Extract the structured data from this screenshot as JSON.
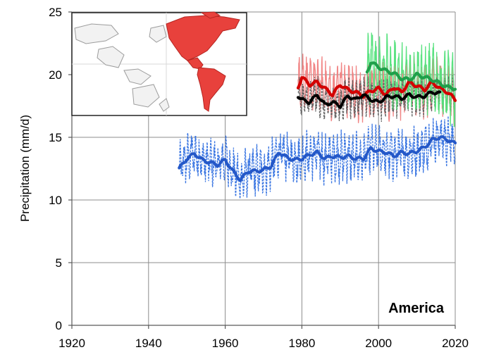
{
  "chart_data": {
    "type": "line",
    "title": "",
    "region_label": "America",
    "xlabel": "",
    "ylabel": "Precipitation (mm/d)",
    "xlim": [
      1920,
      2020
    ],
    "ylim": [
      0,
      25
    ],
    "x_ticks": [
      "1920",
      "1940",
      "1960",
      "1980",
      "2000",
      "2020"
    ],
    "y_ticks": [
      "0",
      "5",
      "10",
      "15",
      "20",
      "25"
    ],
    "grid": true,
    "inset_map": {
      "highlighted_region": "Americas",
      "highlight_color": "#e8413c"
    },
    "series": [
      {
        "color": "#2f6fe0",
        "style": "monthly-dashed",
        "x_range": [
          1948,
          2020
        ],
        "amplitude": 1.8,
        "smoothed": {
          "color": "#2458c8",
          "x": [
            1948,
            1950,
            1952,
            1954,
            1956,
            1958,
            1960,
            1962,
            1964,
            1966,
            1968,
            1970,
            1972,
            1974,
            1976,
            1978,
            1980,
            1982,
            1984,
            1986,
            1988,
            1990,
            1992,
            1994,
            1996,
            1998,
            2000,
            2002,
            2004,
            2006,
            2008,
            2010,
            2012,
            2014,
            2016,
            2018,
            2020
          ],
          "y": [
            12.5,
            13.3,
            13.7,
            13.2,
            13.0,
            12.8,
            13.2,
            12.3,
            11.6,
            12.3,
            12.3,
            12.4,
            12.7,
            13.8,
            13.4,
            13.2,
            13.3,
            13.6,
            13.8,
            13.3,
            13.5,
            13.4,
            13.5,
            13.3,
            13.3,
            14.1,
            13.9,
            13.8,
            13.5,
            13.8,
            13.7,
            13.9,
            14.2,
            14.8,
            15.0,
            14.8,
            14.5
          ]
        }
      },
      {
        "color": "#f08080",
        "style": "monthly",
        "x_range": [
          1979,
          2020
        ],
        "amplitude": 2.0,
        "smoothed": {
          "color": "#d40000",
          "x": [
            1979,
            1980,
            1982,
            1984,
            1986,
            1988,
            1990,
            1992,
            1994,
            1996,
            1998,
            2000,
            2002,
            2004,
            2006,
            2008,
            2010,
            2012,
            2014,
            2016,
            2018,
            2020
          ],
          "y": [
            19.0,
            19.8,
            19.2,
            19.4,
            18.9,
            18.4,
            19.2,
            18.8,
            18.6,
            18.3,
            18.7,
            18.9,
            18.4,
            19.0,
            18.6,
            19.4,
            19.1,
            18.8,
            19.4,
            18.9,
            18.6,
            18.0
          ]
        }
      },
      {
        "color": "#606060",
        "style": "monthly-dashed",
        "x_range": [
          1979,
          2020
        ],
        "amplitude": 1.4,
        "smoothed": {
          "color": "#000000",
          "x": [
            1979,
            1980,
            1982,
            1984,
            1986,
            1988,
            1990,
            1992,
            1994,
            1996,
            1998,
            2000,
            2002,
            2004,
            2006,
            2008,
            2010,
            2012,
            2014,
            2016
          ],
          "y": [
            18.3,
            18.0,
            17.8,
            18.4,
            17.6,
            17.8,
            17.5,
            18.3,
            18.0,
            18.4,
            18.0,
            17.8,
            18.2,
            18.3,
            18.1,
            18.4,
            18.2,
            18.3,
            18.6,
            18.5
          ]
        }
      },
      {
        "color": "#52e07a",
        "style": "monthly",
        "x_range": [
          1997,
          2020
        ],
        "amplitude": 2.6,
        "smoothed": {
          "color": "#1fa04a",
          "x": [
            1997,
            1998,
            2000,
            2002,
            2004,
            2006,
            2008,
            2010,
            2012,
            2014,
            2016,
            2018,
            2020
          ],
          "y": [
            20.2,
            21.0,
            20.6,
            20.3,
            20.1,
            19.7,
            19.6,
            20.0,
            19.8,
            19.6,
            19.3,
            19.0,
            18.9
          ]
        }
      }
    ]
  }
}
